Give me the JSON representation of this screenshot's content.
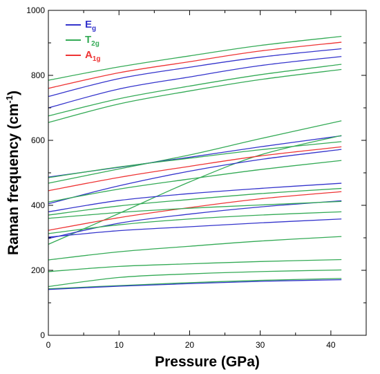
{
  "chart_data": {
    "type": "line",
    "xlabel": "Pressure (GPa)",
    "ylabel_main": "Raman frequency (cm",
    "ylabel_sup": "-1",
    "ylabel_tail": ")",
    "xlim": [
      0,
      45
    ],
    "ylim": [
      0,
      1000
    ],
    "xticks": [
      0,
      10,
      20,
      30,
      40
    ],
    "yticks": [
      0,
      200,
      400,
      600,
      800,
      1000
    ],
    "x_minor_step": 5,
    "y_minor_step": 100,
    "grid": false,
    "legend_position": "top-left",
    "colors": {
      "Eg": "#3333cc",
      "T2g": "#33aa55",
      "A1g": "#ee3333"
    },
    "legend": [
      {
        "key": "Eg",
        "main": "E",
        "sub": "g"
      },
      {
        "key": "T2g",
        "main": "T",
        "sub": "2g"
      },
      {
        "key": "A1g",
        "main": "A",
        "sub": "1g"
      }
    ],
    "series": [
      {
        "group": "T2g",
        "points": [
          [
            0,
            785
          ],
          [
            10,
            826
          ],
          [
            20,
            860
          ],
          [
            30,
            892
          ],
          [
            41.5,
            920
          ]
        ]
      },
      {
        "group": "A1g",
        "points": [
          [
            0,
            760
          ],
          [
            10,
            808
          ],
          [
            20,
            842
          ],
          [
            30,
            875
          ],
          [
            41.5,
            902
          ]
        ]
      },
      {
        "group": "Eg",
        "points": [
          [
            0,
            735
          ],
          [
            10,
            790
          ],
          [
            20,
            825
          ],
          [
            30,
            856
          ],
          [
            41.5,
            882
          ]
        ]
      },
      {
        "group": "Eg",
        "points": [
          [
            0,
            700
          ],
          [
            10,
            758
          ],
          [
            20,
            795
          ],
          [
            30,
            830
          ],
          [
            41.5,
            858
          ]
        ]
      },
      {
        "group": "T2g",
        "points": [
          [
            0,
            675
          ],
          [
            10,
            728
          ],
          [
            20,
            767
          ],
          [
            30,
            802
          ],
          [
            41.5,
            834
          ]
        ]
      },
      {
        "group": "T2g",
        "points": [
          [
            0,
            655
          ],
          [
            10,
            712
          ],
          [
            20,
            752
          ],
          [
            30,
            787
          ],
          [
            41.5,
            818
          ]
        ]
      },
      {
        "group": "T2g",
        "points": [
          [
            0,
            468
          ],
          [
            10,
            512
          ],
          [
            20,
            555
          ],
          [
            30,
            605
          ],
          [
            41.5,
            660
          ]
        ]
      },
      {
        "group": "Eg",
        "points": [
          [
            0,
            487
          ],
          [
            10,
            517
          ],
          [
            20,
            548
          ],
          [
            30,
            580
          ],
          [
            41.5,
            614
          ]
        ]
      },
      {
        "group": "T2g",
        "points": [
          [
            0,
            485
          ],
          [
            10,
            518
          ],
          [
            20,
            545
          ],
          [
            30,
            571
          ],
          [
            41.5,
            596
          ]
        ]
      },
      {
        "group": "T2g",
        "points": [
          [
            0,
            280
          ],
          [
            10,
            375
          ],
          [
            20,
            472
          ],
          [
            30,
            555
          ],
          [
            41.5,
            615
          ]
        ]
      },
      {
        "group": "A1g",
        "points": [
          [
            0,
            445
          ],
          [
            10,
            486
          ],
          [
            20,
            520
          ],
          [
            30,
            552
          ],
          [
            41.5,
            580
          ]
        ]
      },
      {
        "group": "Eg",
        "points": [
          [
            0,
            405
          ],
          [
            10,
            460
          ],
          [
            20,
            505
          ],
          [
            30,
            541
          ],
          [
            41.5,
            572
          ]
        ]
      },
      {
        "group": "T2g",
        "points": [
          [
            0,
            410
          ],
          [
            10,
            450
          ],
          [
            20,
            481
          ],
          [
            30,
            510
          ],
          [
            41.5,
            538
          ]
        ]
      },
      {
        "group": "Eg",
        "points": [
          [
            0,
            380
          ],
          [
            10,
            415
          ],
          [
            20,
            436
          ],
          [
            30,
            452
          ],
          [
            41.5,
            468
          ]
        ]
      },
      {
        "group": "T2g",
        "points": [
          [
            0,
            370
          ],
          [
            10,
            398
          ],
          [
            20,
            418
          ],
          [
            30,
            436
          ],
          [
            41.5,
            452
          ]
        ]
      },
      {
        "group": "A1g",
        "points": [
          [
            0,
            323
          ],
          [
            10,
            362
          ],
          [
            20,
            393
          ],
          [
            30,
            420
          ],
          [
            41.5,
            442
          ]
        ]
      },
      {
        "group": "Eg",
        "points": [
          [
            0,
            298
          ],
          [
            10,
            345
          ],
          [
            20,
            373
          ],
          [
            30,
            395
          ],
          [
            41.5,
            414
          ]
        ]
      },
      {
        "group": "T2g",
        "points": [
          [
            0,
            360
          ],
          [
            10,
            378
          ],
          [
            20,
            391
          ],
          [
            30,
            401
          ],
          [
            41.5,
            412
          ]
        ]
      },
      {
        "group": "T2g",
        "points": [
          [
            0,
            313
          ],
          [
            10,
            340
          ],
          [
            20,
            358
          ],
          [
            30,
            370
          ],
          [
            41.5,
            380
          ]
        ]
      },
      {
        "group": "Eg",
        "points": [
          [
            0,
            302
          ],
          [
            10,
            322
          ],
          [
            20,
            334
          ],
          [
            30,
            346
          ],
          [
            41.5,
            358
          ]
        ]
      },
      {
        "group": "T2g",
        "points": [
          [
            0,
            232
          ],
          [
            10,
            257
          ],
          [
            20,
            274
          ],
          [
            30,
            290
          ],
          [
            41.5,
            304
          ]
        ]
      },
      {
        "group": "T2g",
        "points": [
          [
            0,
            196
          ],
          [
            10,
            212
          ],
          [
            20,
            220
          ],
          [
            30,
            227
          ],
          [
            41.5,
            233
          ]
        ]
      },
      {
        "group": "T2g",
        "points": [
          [
            0,
            150
          ],
          [
            10,
            178
          ],
          [
            20,
            189
          ],
          [
            30,
            196
          ],
          [
            41.5,
            201
          ]
        ]
      },
      {
        "group": "T2g",
        "points": [
          [
            0,
            143
          ],
          [
            10,
            153
          ],
          [
            20,
            162
          ],
          [
            30,
            169
          ],
          [
            41.5,
            175
          ]
        ]
      },
      {
        "group": "Eg",
        "points": [
          [
            0,
            141
          ],
          [
            10,
            151
          ],
          [
            20,
            159
          ],
          [
            30,
            166
          ],
          [
            41.5,
            171
          ]
        ]
      }
    ]
  }
}
